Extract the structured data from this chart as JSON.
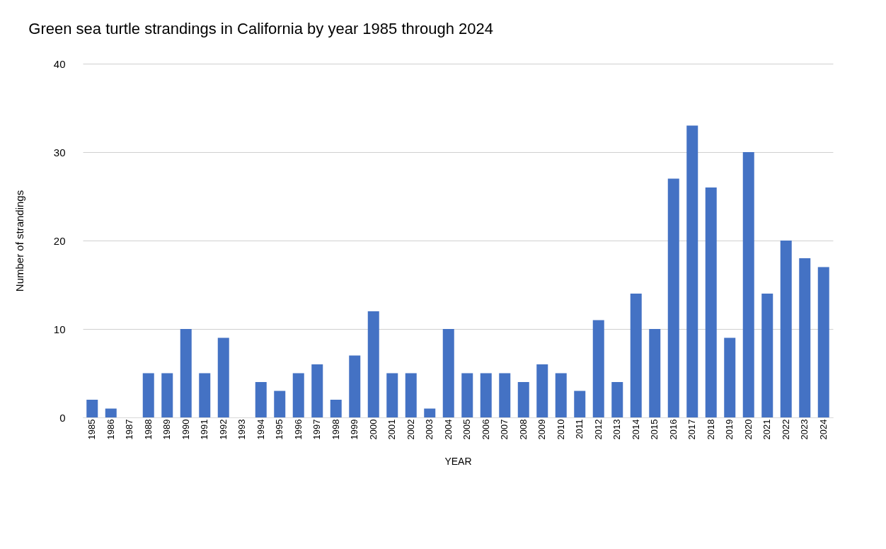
{
  "chart_data": {
    "type": "bar",
    "title": "Green sea turtle strandings in California by year 1985 through 2024",
    "xlabel": "YEAR",
    "ylabel": "Number of strandings",
    "categories": [
      "1985",
      "1986",
      "1987",
      "1988",
      "1989",
      "1990",
      "1991",
      "1992",
      "1993",
      "1994",
      "1995",
      "1996",
      "1997",
      "1998",
      "1999",
      "2000",
      "2001",
      "2002",
      "2003",
      "2004",
      "2005",
      "2006",
      "2007",
      "2008",
      "2009",
      "2010",
      "2011",
      "2012",
      "2013",
      "2014",
      "2015",
      "2016",
      "2017",
      "2018",
      "2019",
      "2020",
      "2021",
      "2022",
      "2023",
      "2024"
    ],
    "values": [
      2,
      1,
      0,
      5,
      5,
      10,
      5,
      9,
      0,
      4,
      3,
      5,
      6,
      2,
      7,
      12,
      5,
      5,
      1,
      10,
      5,
      5,
      5,
      4,
      6,
      5,
      3,
      11,
      4,
      14,
      10,
      27,
      33,
      26,
      9,
      30,
      14,
      20,
      18,
      17
    ],
    "color": "#4472c4",
    "ylim": [
      0,
      40
    ],
    "yticks": [
      0,
      10,
      20,
      30,
      40
    ],
    "grid": "y"
  }
}
